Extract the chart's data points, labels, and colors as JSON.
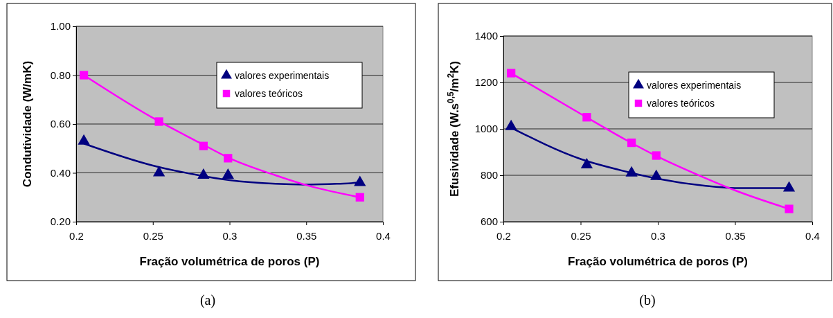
{
  "chart_data": [
    {
      "type": "scatter",
      "xlabel": "Fração volumétrica de poros (P)",
      "ylabel": "Condutividade (W/mK)",
      "xlim": [
        0.2,
        0.4
      ],
      "xticks": [
        0.2,
        0.25,
        0.3,
        0.35,
        0.4
      ],
      "ylim": [
        0.2,
        1.0
      ],
      "yticks": [
        {
          "value": 0.2,
          "label": "0.20"
        },
        {
          "value": 0.4,
          "label": "0.40"
        },
        {
          "value": 0.6,
          "label": "0.60"
        },
        {
          "value": 0.8,
          "label": "0.80"
        },
        {
          "value": 1.0,
          "label": "1.00"
        }
      ],
      "grid": "y",
      "legend": "top right",
      "annotations": [
        "(a)"
      ],
      "series": [
        {
          "type": "line",
          "color": "#000080",
          "marker": "none",
          "x": [
            0.205,
            0.25,
            0.28,
            0.3,
            0.33,
            0.35,
            0.37,
            0.385
          ],
          "values": [
            0.52,
            0.43,
            0.39,
            0.37,
            0.355,
            0.352,
            0.355,
            0.36
          ]
        },
        {
          "type": "line",
          "color": "#ff00ff",
          "marker": "none",
          "x": [
            0.205,
            0.25,
            0.28,
            0.3,
            0.33,
            0.35,
            0.385
          ],
          "values": [
            0.8,
            0.625,
            0.525,
            0.46,
            0.39,
            0.35,
            0.3
          ]
        },
        {
          "name": "valores experimentais",
          "color": "#000080",
          "marker": "triangle",
          "x": [
            0.205,
            0.254,
            0.283,
            0.299,
            0.385
          ],
          "values": [
            0.53,
            0.4,
            0.39,
            0.39,
            0.36
          ]
        },
        {
          "name": "valores teóricos",
          "color": "#ff00ff",
          "marker": "square",
          "x": [
            0.205,
            0.254,
            0.283,
            0.299,
            0.385
          ],
          "values": [
            0.8,
            0.61,
            0.51,
            0.46,
            0.3
          ]
        }
      ]
    },
    {
      "type": "scatter",
      "xlabel": "Fração volumétrica de poros (P)",
      "ylabel": "Efusividade (W.s$^{0,5}$/m$^{2}$K)",
      "xlim": [
        0.2,
        0.4
      ],
      "xticks": [
        0.2,
        0.25,
        0.3,
        0.35,
        0.4
      ],
      "ylim": [
        600,
        1400
      ],
      "yticks": [
        600,
        800,
        1000,
        1200,
        1400
      ],
      "grid": "y",
      "legend": "top right",
      "annotations": [
        "(b)"
      ],
      "series": [
        {
          "type": "line",
          "color": "#000080",
          "marker": "none",
          "x": [
            0.205,
            0.25,
            0.28,
            0.3,
            0.33,
            0.35,
            0.385
          ],
          "values": [
            1005,
            870,
            815,
            785,
            755,
            745,
            745
          ]
        },
        {
          "type": "line",
          "color": "#ff00ff",
          "marker": "none",
          "x": [
            0.205,
            0.25,
            0.28,
            0.3,
            0.33,
            0.35,
            0.385
          ],
          "values": [
            1240,
            1065,
            950,
            880,
            790,
            735,
            655
          ]
        },
        {
          "name": "valores experimentais",
          "color": "#000080",
          "marker": "triangle",
          "x": [
            0.205,
            0.254,
            0.283,
            0.299,
            0.385
          ],
          "values": [
            1010,
            845,
            810,
            795,
            745
          ]
        },
        {
          "name": "valores teóricos",
          "color": "#ff00ff",
          "marker": "square",
          "x": [
            0.205,
            0.254,
            0.283,
            0.299,
            0.385
          ],
          "values": [
            1240,
            1050,
            940,
            885,
            655
          ]
        }
      ]
    }
  ]
}
